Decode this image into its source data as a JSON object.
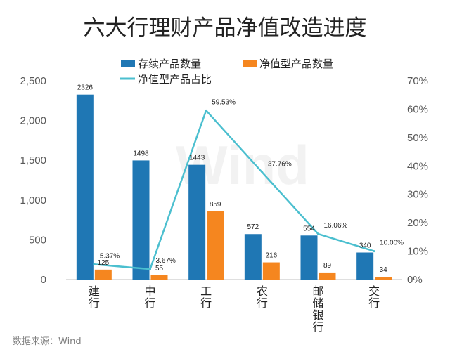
{
  "chart_data": {
    "type": "bar",
    "title": "六大行理财产品净值改造进度",
    "categories": [
      "建\n行",
      "中\n行",
      "工\n行",
      "农\n行",
      "邮\n储\n银\n行",
      "交\n行"
    ],
    "series": [
      {
        "name": "存续产品数量",
        "values": [
          2326,
          1498,
          1443,
          572,
          554,
          340
        ],
        "color": "#1f77b4",
        "axis": "left"
      },
      {
        "name": "净值型产品数量",
        "values": [
          125,
          55,
          859,
          216,
          89,
          34
        ],
        "color": "#f5861f",
        "axis": "left"
      },
      {
        "name": "净值型产品占比",
        "type": "line",
        "values": [
          5.37,
          3.67,
          59.53,
          37.76,
          16.06,
          10.0
        ],
        "value_labels": [
          "5.37%",
          "3.67%",
          "59.53%",
          "37.76%",
          "16.06%",
          "10.00%"
        ],
        "color": "#4bbfcf",
        "axis": "right"
      }
    ],
    "left_axis": {
      "ylim": [
        0,
        2500
      ],
      "ticks": [
        "0",
        "500",
        "1,000",
        "1,500",
        "2,000",
        "2,500"
      ]
    },
    "right_axis": {
      "ylim": [
        0,
        70
      ],
      "ticks": [
        "0%",
        "10%",
        "20%",
        "30%",
        "40%",
        "50%",
        "60%",
        "70%"
      ]
    },
    "legend_position": "top",
    "watermark": "Wind",
    "source": "数据来源：Wind"
  }
}
